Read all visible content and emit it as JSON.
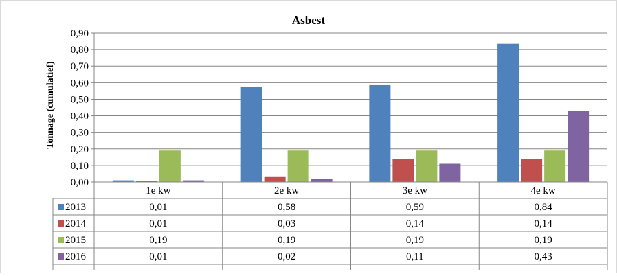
{
  "chart_data": {
    "type": "bar",
    "title": "Asbest",
    "xlabel": "",
    "ylabel": "Tonnage (cumulatief)",
    "ylim": [
      0,
      0.9
    ],
    "ytick_step": 0.1,
    "yticks": [
      "0,00",
      "0,10",
      "0,20",
      "0,30",
      "0,40",
      "0,50",
      "0,60",
      "0,70",
      "0,80",
      "0,90"
    ],
    "grid": true,
    "legend_placement": "data table (left of rows)",
    "categories": [
      "1e kw",
      "2e kw",
      "3e kw",
      "4e kw"
    ],
    "series": [
      {
        "name": "2013",
        "color": "#4f81bd",
        "values": [
          0.01,
          0.575,
          0.585,
          0.835
        ],
        "labels": [
          "0,01",
          "0,58",
          "0,59",
          "0,84"
        ]
      },
      {
        "name": "2014",
        "color": "#c0504d",
        "values": [
          0.008,
          0.03,
          0.14,
          0.14
        ],
        "labels": [
          "0,01",
          "0,03",
          "0,14",
          "0,14"
        ]
      },
      {
        "name": "2015",
        "color": "#9bbb59",
        "values": [
          0.19,
          0.19,
          0.19,
          0.19
        ],
        "labels": [
          "0,19",
          "0,19",
          "0,19",
          "0,19"
        ]
      },
      {
        "name": "2016",
        "color": "#8064a2",
        "values": [
          0.01,
          0.02,
          0.11,
          0.43
        ],
        "labels": [
          "0,01",
          "0,02",
          "0,11",
          "0,43"
        ]
      }
    ]
  }
}
